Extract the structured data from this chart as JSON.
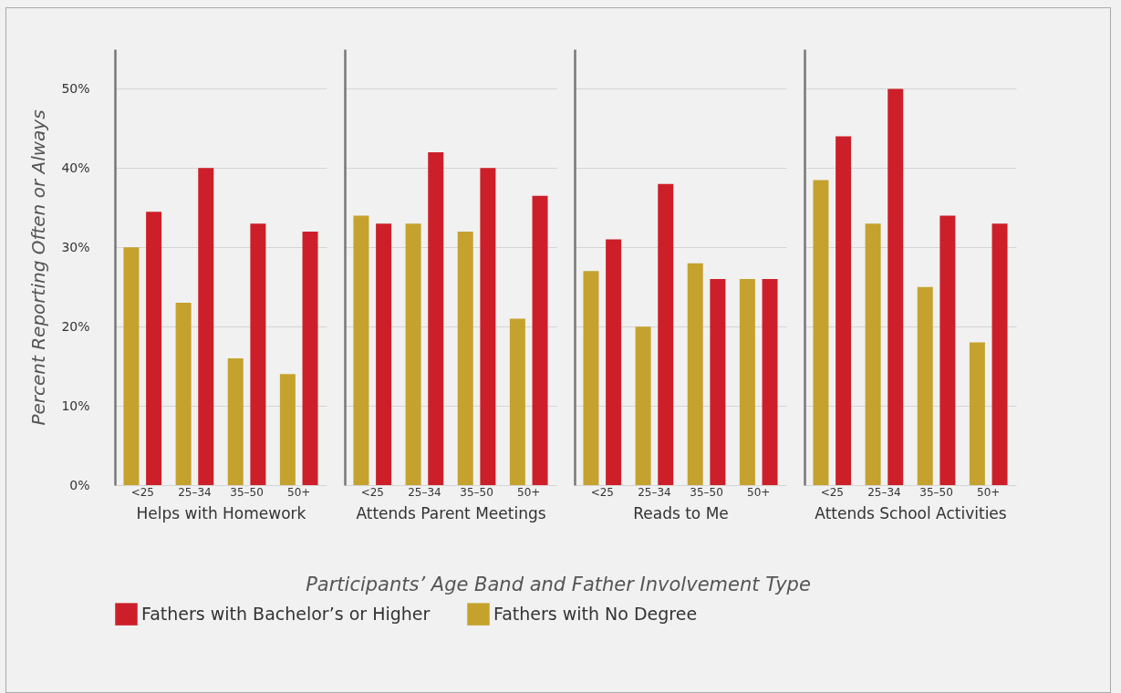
{
  "chart_data": [
    {
      "type": "bar",
      "xlabel": "Helps with Homework",
      "ylabel": "Percent Reporting Often or Always",
      "categories": [
        "<25",
        "25–34",
        "35–50",
        "50+"
      ],
      "series": [
        {
          "name": "Fathers with No Degree",
          "color": "#c5a22e",
          "values": [
            30,
            23,
            16,
            14
          ]
        },
        {
          "name": "Fathers with Bachelor’s or Higher",
          "color": "#cd1f29",
          "values": [
            34.5,
            40,
            33,
            32
          ]
        }
      ],
      "ylim": [
        0,
        55
      ],
      "yticks": [
        {
          "value": 0,
          "label": "0%"
        },
        {
          "value": 10,
          "label": "10%"
        },
        {
          "value": 20,
          "label": "20%"
        },
        {
          "value": 30,
          "label": "30%"
        },
        {
          "value": 40,
          "label": "40%"
        },
        {
          "value": 50,
          "label": "50%"
        }
      ],
      "grid": "y",
      "legend": "bottom",
      "annotations": [
        "Participants’ Age Band and Father Involvement Type"
      ]
    },
    {
      "type": "bar",
      "xlabel": "Attends Parent Meetings",
      "categories": [
        "<25",
        "25–34",
        "35–50",
        "50+"
      ],
      "series": [
        {
          "color": "#c5a22e",
          "values": [
            34,
            33,
            32,
            21
          ]
        },
        {
          "color": "#cd1f29",
          "values": [
            33,
            42,
            40,
            36.5
          ]
        }
      ],
      "ylim": [
        0,
        55
      ],
      "yticks": [
        0,
        10,
        20,
        30,
        40,
        50
      ],
      "grid": "y",
      "tick_labels": "x"
    },
    {
      "type": "bar",
      "xlabel": "Reads to Me",
      "categories": [
        "<25",
        "25–34",
        "35–50",
        "50+"
      ],
      "series": [
        {
          "color": "#c5a22e",
          "values": [
            27,
            20,
            28,
            26
          ]
        },
        {
          "color": "#cd1f29",
          "values": [
            31,
            38,
            26,
            26
          ]
        }
      ],
      "ylim": [
        0,
        55
      ],
      "yticks": [
        0,
        10,
        20,
        30,
        40,
        50
      ],
      "grid": "y",
      "tick_labels": "x"
    },
    {
      "type": "bar",
      "xlabel": "Attends School Activities",
      "categories": [
        "<25",
        "25–34",
        "35–50",
        "50+"
      ],
      "series": [
        {
          "color": "#c5a22e",
          "values": [
            38.5,
            33,
            25,
            18
          ]
        },
        {
          "color": "#cd1f29",
          "values": [
            44,
            50,
            34,
            33
          ]
        }
      ],
      "ylim": [
        0,
        55
      ],
      "yticks": [
        0,
        10,
        20,
        30,
        40,
        50
      ],
      "grid": "y",
      "tick_labels": "x"
    }
  ]
}
